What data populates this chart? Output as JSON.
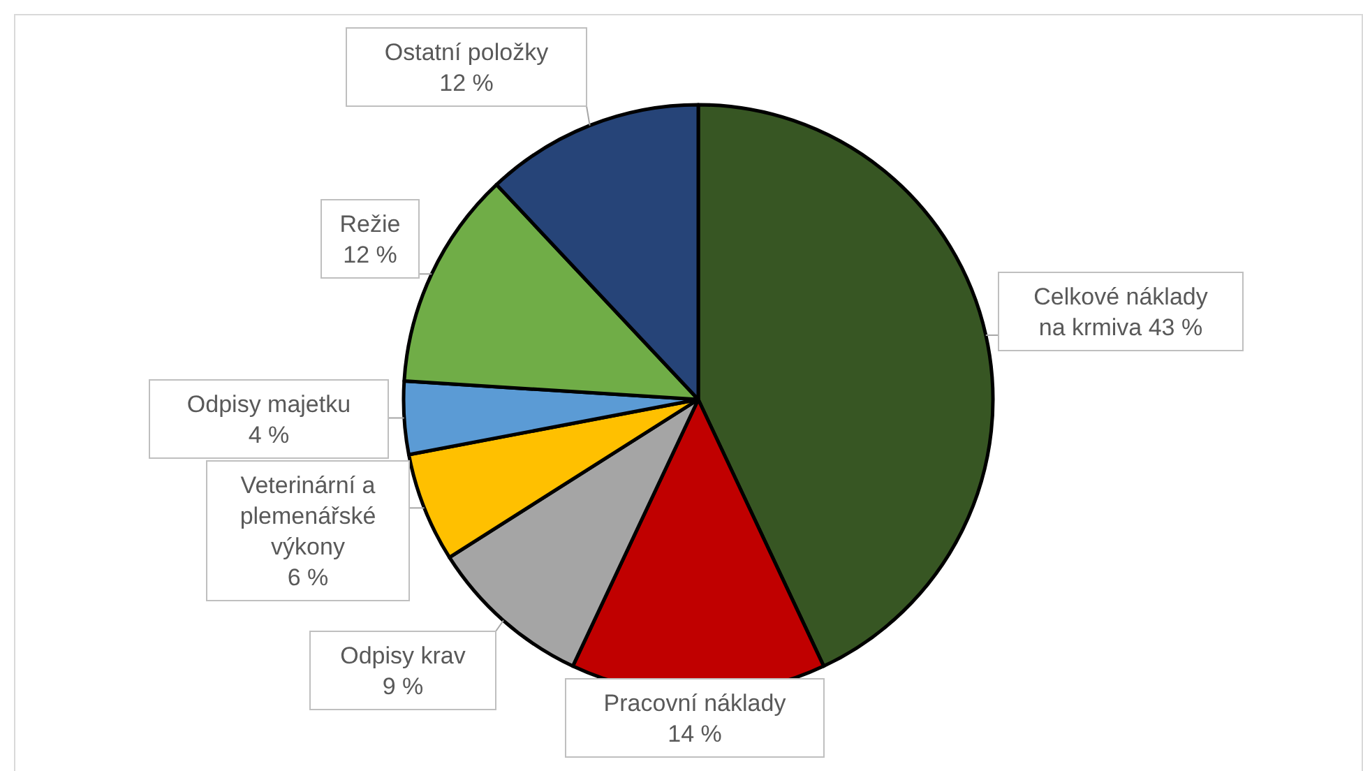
{
  "chart_data": {
    "type": "pie",
    "categories": [
      "Celkové náklady na krmiva",
      "Pracovní náklady",
      "Odpisy krav",
      "Veterinární a plemenářské výkony",
      "Odpisy majetku",
      "Režie",
      "Ostatní položky"
    ],
    "values": [
      43,
      14,
      9,
      6,
      4,
      12,
      12
    ],
    "value_labels": [
      "43 %",
      "14 %",
      "9 %",
      "6 %",
      "4 %",
      "12 %",
      "12 %"
    ],
    "colors": [
      "#375623",
      "#c00000",
      "#a5a5a5",
      "#ffc000",
      "#5b9bd5",
      "#70ad47",
      "#264478"
    ]
  }
}
